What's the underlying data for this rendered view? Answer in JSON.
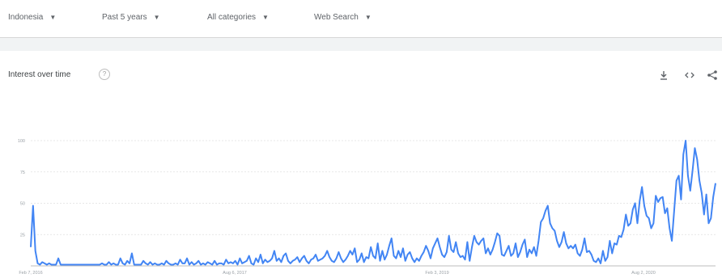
{
  "filters": [
    {
      "label": "Indonesia",
      "icon": "chevron-down-icon"
    },
    {
      "label": "Past 5 years",
      "icon": "chevron-down-icon"
    },
    {
      "label": "All categories",
      "icon": "chevron-down-icon"
    },
    {
      "label": "Web Search",
      "icon": "chevron-down-icon"
    }
  ],
  "card": {
    "title": "Interest over time",
    "help_icon": "help-icon",
    "actions": [
      "download-icon",
      "embed-icon",
      "share-icon"
    ]
  },
  "colors": {
    "line": "#4285f4",
    "grid": "#e0e0e0",
    "text": "#5f6368"
  },
  "chart_data": {
    "type": "line",
    "y_ticks": [
      25,
      50,
      75,
      100
    ],
    "ylim": [
      0,
      100
    ],
    "grid": true,
    "x_tick_labels": [
      "Feb 7, 2016",
      "Aug 6, 2017",
      "Feb 3, 2019",
      "Aug 2, 2020"
    ],
    "series": [
      {
        "values": [
          15,
          48,
          12,
          2,
          1,
          3,
          2,
          1,
          2,
          1,
          1,
          1,
          6,
          1,
          1,
          1,
          1,
          1,
          1,
          1,
          1,
          1,
          1,
          1,
          1,
          1,
          1,
          1,
          1,
          1,
          1,
          2,
          1,
          1,
          3,
          1,
          2,
          1,
          1,
          6,
          2,
          1,
          4,
          2,
          10,
          1,
          1,
          1,
          1,
          4,
          2,
          1,
          3,
          1,
          2,
          1,
          1,
          2,
          1,
          4,
          2,
          1,
          1,
          2,
          1,
          5,
          2,
          2,
          6,
          1,
          3,
          1,
          2,
          4,
          1,
          2,
          1,
          3,
          2,
          1,
          4,
          1,
          2,
          2,
          1,
          5,
          2,
          3,
          2,
          4,
          1,
          6,
          2,
          3,
          4,
          8,
          2,
          1,
          6,
          3,
          9,
          2,
          5,
          3,
          4,
          6,
          12,
          4,
          6,
          3,
          8,
          10,
          4,
          2,
          4,
          5,
          7,
          3,
          6,
          8,
          4,
          2,
          5,
          6,
          9,
          4,
          5,
          6,
          8,
          12,
          7,
          4,
          3,
          6,
          11,
          6,
          3,
          5,
          8,
          12,
          9,
          14,
          3,
          5,
          10,
          3,
          7,
          6,
          15,
          8,
          6,
          18,
          4,
          12,
          5,
          9,
          16,
          22,
          8,
          6,
          12,
          7,
          14,
          4,
          9,
          11,
          6,
          3,
          6,
          4,
          8,
          11,
          16,
          12,
          6,
          14,
          18,
          22,
          15,
          9,
          7,
          11,
          24,
          13,
          11,
          19,
          10,
          7,
          8,
          5,
          19,
          4,
          15,
          24,
          19,
          17,
          20,
          22,
          10,
          14,
          9,
          13,
          19,
          26,
          24,
          9,
          8,
          12,
          16,
          8,
          10,
          18,
          7,
          11,
          17,
          21,
          7,
          13,
          10,
          15,
          8,
          20,
          35,
          38,
          44,
          48,
          34,
          30,
          28,
          20,
          15,
          19,
          27,
          18,
          14,
          16,
          14,
          17,
          10,
          8,
          13,
          22,
          11,
          12,
          9,
          4,
          3,
          6,
          2,
          12,
          4,
          7,
          20,
          10,
          18,
          17,
          24,
          23,
          29,
          41,
          32,
          34,
          45,
          50,
          34,
          52,
          63,
          48,
          40,
          38,
          30,
          34,
          56,
          51,
          54,
          55,
          42,
          46,
          30,
          20,
          44,
          68,
          72,
          53,
          89,
          100,
          72,
          60,
          76,
          94,
          85,
          68,
          58,
          41,
          57,
          34,
          38,
          55,
          66
        ]
      }
    ]
  }
}
